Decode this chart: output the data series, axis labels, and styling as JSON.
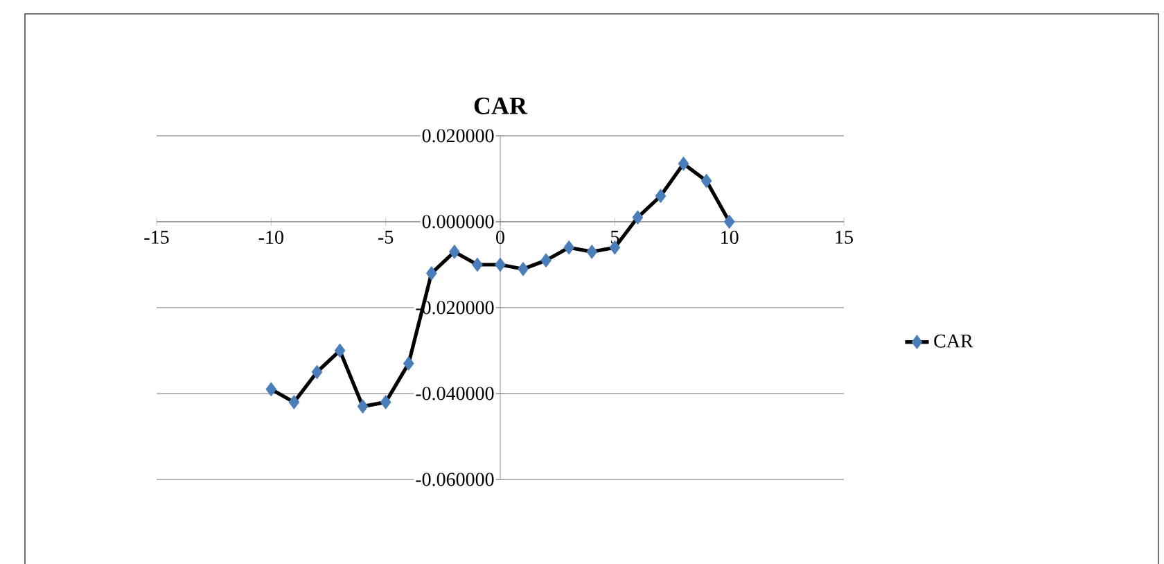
{
  "chart_data": {
    "type": "line",
    "title": "CAR",
    "x": [
      -10,
      -9,
      -8,
      -7,
      -6,
      -5,
      -4,
      -3,
      -2,
      -1,
      0,
      1,
      2,
      3,
      4,
      5,
      6,
      7,
      8,
      9,
      10
    ],
    "series": [
      {
        "name": "CAR",
        "color": "#4a7ebb",
        "values": [
          -0.039,
          -0.042,
          -0.035,
          -0.03,
          -0.043,
          -0.042,
          -0.033,
          -0.012,
          -0.007,
          -0.01,
          -0.01,
          -0.011,
          -0.009,
          -0.006,
          -0.007,
          -0.006,
          0.001,
          0.006,
          0.0135,
          0.0095,
          0.0
        ]
      }
    ],
    "xlim": [
      -15,
      15
    ],
    "xticks": [
      -15,
      -10,
      -5,
      0,
      5,
      10,
      15
    ],
    "ylim": [
      -0.06,
      0.02
    ],
    "yticks": [
      {
        "value": -0.06,
        "label": "-0.060000"
      },
      {
        "value": -0.04,
        "label": "-0.040000"
      },
      {
        "value": -0.02,
        "label": "-0.020000"
      },
      {
        "value": 0,
        "label": "0.000000"
      },
      {
        "value": 0.02,
        "label": "0.020000"
      }
    ],
    "grid": "y",
    "legend": "right",
    "marker": "diamond",
    "line_style": "solid"
  }
}
